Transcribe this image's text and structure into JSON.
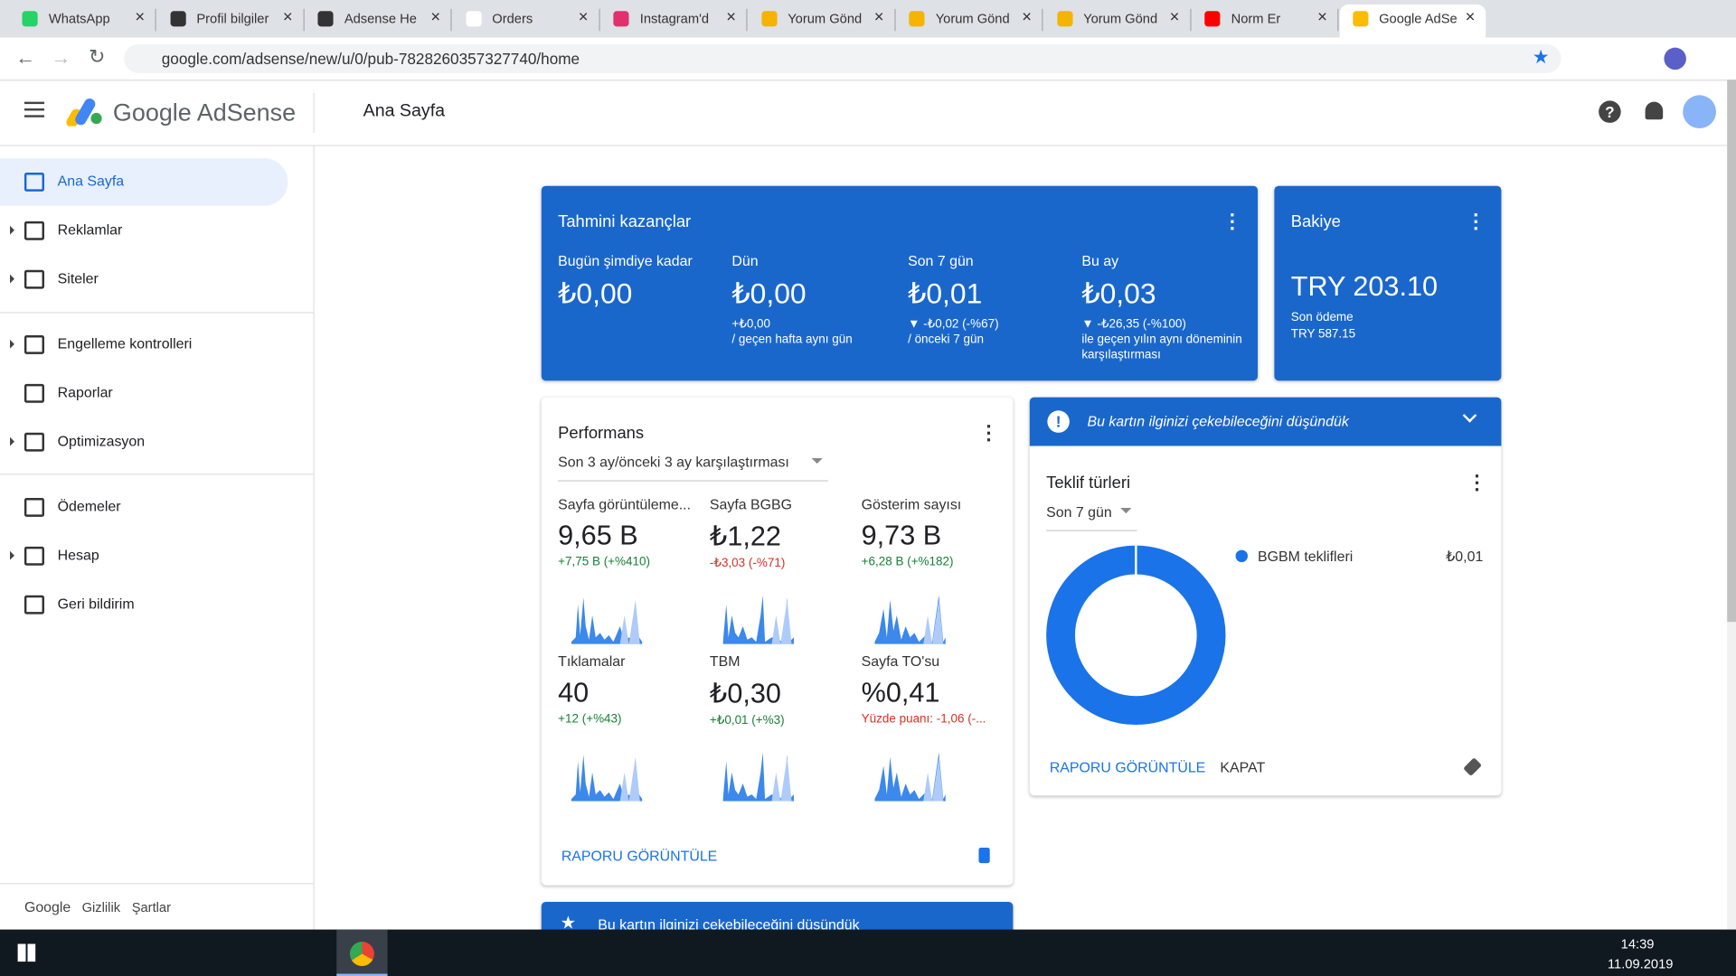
{
  "browser": {
    "tabs": [
      "WhatsApp",
      "Profil bilgiler",
      "Adsense He",
      "Orders",
      "Instagram'd",
      "Yorum Gönd",
      "Yorum Gönd",
      "Yorum Gönd",
      "Norm Er",
      "Google AdSe"
    ],
    "url": "google.com/adsense/new/u/0/pub-7828260357327740/home"
  },
  "header": {
    "product": "Google AdSense",
    "page_title": "Ana Sayfa"
  },
  "sidebar": {
    "items": [
      "Ana Sayfa",
      "Reklamlar",
      "Siteler",
      "Engelleme kontrolleri",
      "Raporlar",
      "Optimizasyon",
      "Ödemeler",
      "Hesap",
      "Geri bildirim"
    ],
    "footer": [
      "Google",
      "Gizlilik",
      "Şartlar"
    ]
  },
  "earnings": {
    "title": "Tahmini kazançlar",
    "columns": [
      {
        "label": "Bugün şimdiye kadar",
        "value": "₺0,00"
      },
      {
        "label": "Dün",
        "value": "₺0,00",
        "change": "+₺0,00",
        "note": "/ geçen hafta aynı gün"
      },
      {
        "label": "Son 7 gün",
        "value": "₺0,01",
        "change": "▼ -₺0,02 (-%67)",
        "note": "/ önceki 7 gün"
      },
      {
        "label": "Bu ay",
        "value": "₺0,03",
        "change": "▼ -₺26,35 (-%100)",
        "note": "ile geçen yılın aynı döneminin karşılaştırması"
      }
    ]
  },
  "balance": {
    "title": "Bakiye",
    "value": "TRY 203.10",
    "last_payment_label": "Son ödeme",
    "last_payment": "TRY 587.15"
  },
  "performance": {
    "title": "Performans",
    "period": "Son 3 ay/önceki 3 ay karşılaştırması",
    "metrics": [
      {
        "label": "Sayfa görüntüleme...",
        "value": "9,65 B",
        "change": "+7,75 B (+%410)"
      },
      {
        "label": "Sayfa BGBG",
        "value": "₺1,22",
        "change": "-₺3,03 (-%71)"
      },
      {
        "label": "Gösterim sayısı",
        "value": "9,73 B",
        "change": "+6,28 B (+%182)"
      },
      {
        "label": "Tıklamalar",
        "value": "40",
        "change": "+12 (+%43)"
      },
      {
        "label": "TBM",
        "value": "₺0,30",
        "change": "+₺0,01 (+%3)"
      },
      {
        "label": "Sayfa TO'su",
        "value": "%0,41",
        "change": "Yüzde puanı: -1,06 (-..."
      }
    ],
    "link": "RAPORU GÖRÜNTÜLE"
  },
  "suggestion": {
    "banner": "Bu kartın ilginizi çekebileceğini düşündük",
    "title": "Teklif türleri",
    "period": "Son 7 gün",
    "legend": {
      "name": "BGBM teklifleri",
      "value": "₺0,01"
    },
    "actions": [
      "RAPORU GÖRÜNTÜLE",
      "KAPAT"
    ]
  },
  "bottom_card": {
    "banner": "Bu kartın ilginizi çekebileceğini düşündük"
  },
  "taskbar": {
    "time": "14:39",
    "date": "11.09.2019"
  }
}
